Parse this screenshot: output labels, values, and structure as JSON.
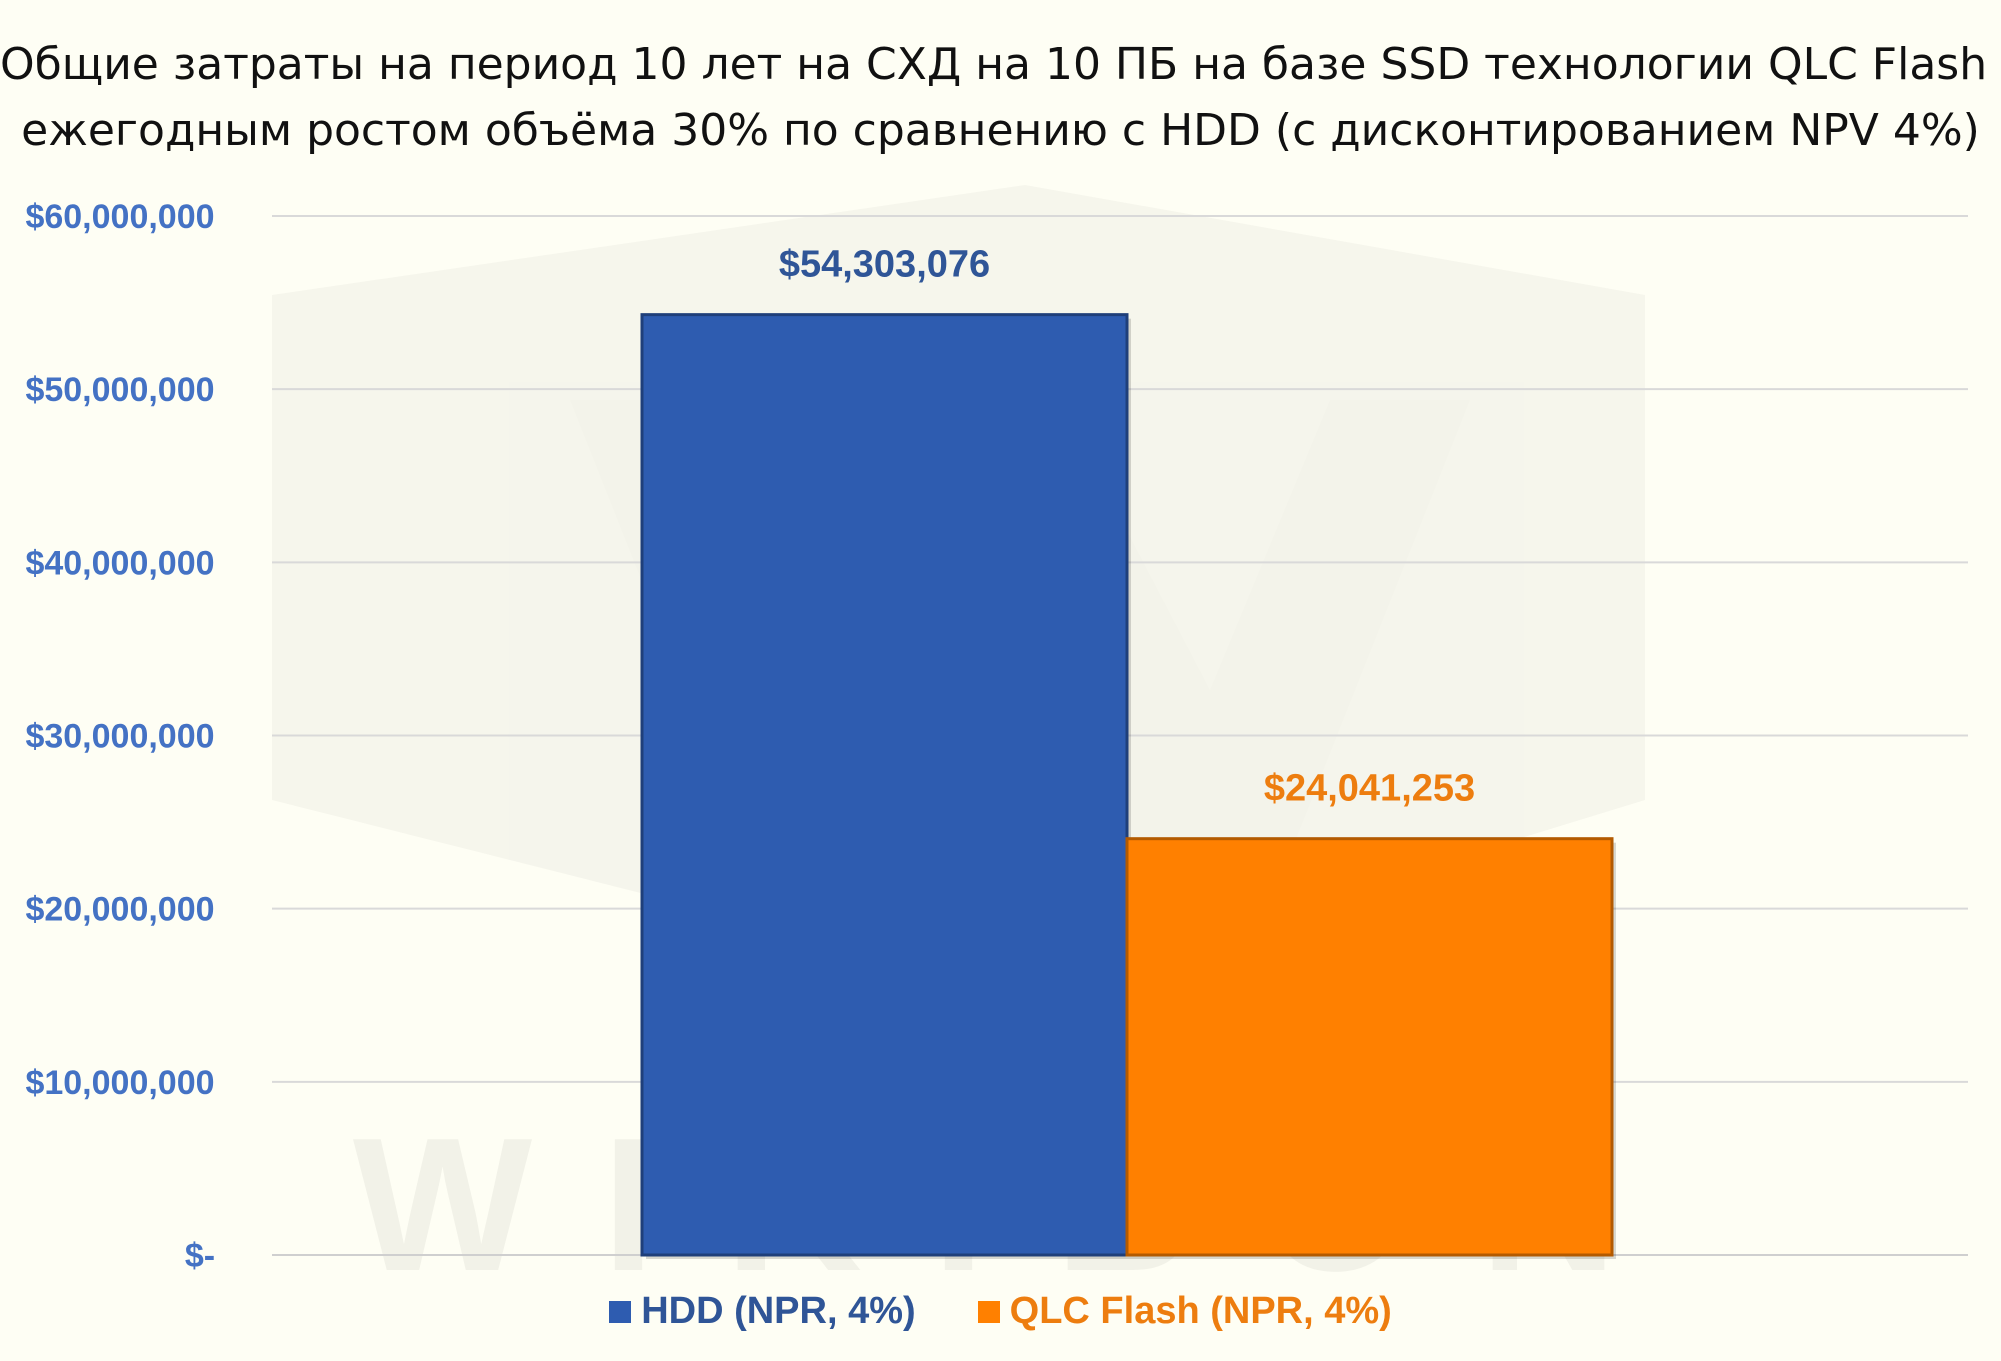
{
  "chart_data": {
    "type": "bar",
    "title_lines": [
      "Общие затраты на период 10 лет на СХД на 10 ПБ на базе SSD технологии QLC Flash с",
      "ежегодным ростом объёма 30% по сравнению с HDD (с дисконтированием NPV 4%)"
    ],
    "categories": [
      "HDD (NPR, 4%)",
      "QLC Flash (NPR, 4%)"
    ],
    "values": [
      54303076,
      24041253
    ],
    "data_labels": [
      "$54,303,076",
      "$24,041,253"
    ],
    "colors": [
      "#2e5cb0",
      "#ff8000"
    ],
    "label_colors": [
      "#2f5597",
      "#ed7d0f"
    ],
    "y_ticks": [
      0,
      10000000,
      20000000,
      30000000,
      40000000,
      50000000,
      60000000
    ],
    "y_tick_labels": [
      "$-",
      "$10,000,000",
      "$20,000,000",
      "$30,000,000",
      "$40,000,000",
      "$50,000,000",
      "$60,000,000"
    ],
    "ylim": [
      0,
      60000000
    ],
    "xlabel": "",
    "ylabel": "",
    "grid": true,
    "legend_position": "bottom"
  },
  "watermark": "WIKIBON"
}
